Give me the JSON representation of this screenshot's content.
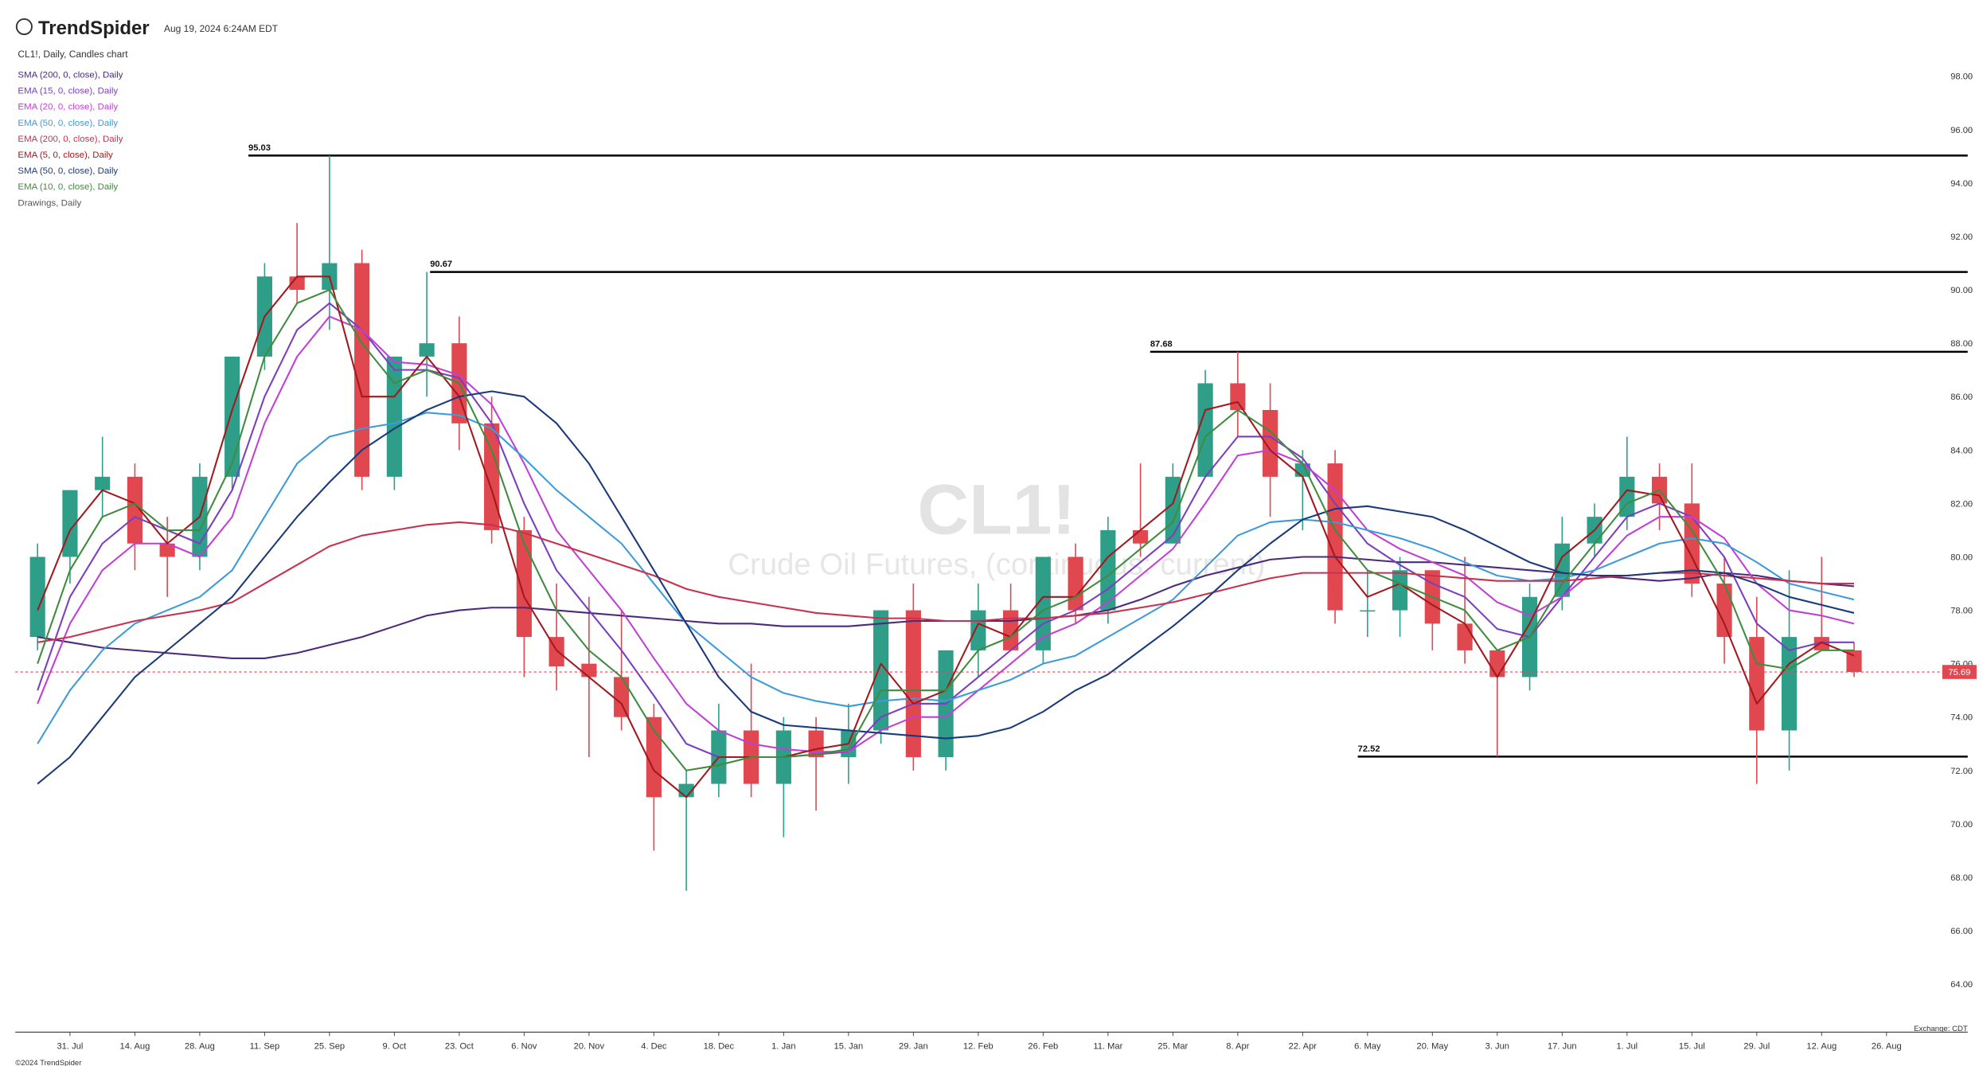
{
  "header": {
    "brand": "TrendSpider",
    "timestamp": "Aug 19, 2024 6:24AM EDT",
    "chart_label": "CL1!, Daily, Candles chart",
    "exchange": "Exchange: CDT",
    "copyright": "©2024 TrendSpider"
  },
  "chart_data": {
    "type": "candlestick",
    "watermark": {
      "symbol": "CL1!",
      "description": "Crude Oil Futures, (continuous: current)"
    },
    "categories": [
      null,
      "31. Jul",
      null,
      "14. Aug",
      null,
      "28. Aug",
      null,
      "11. Sep",
      null,
      "25. Sep",
      null,
      "9. Oct",
      null,
      "23. Oct",
      null,
      "6. Nov",
      null,
      "20. Nov",
      null,
      "4. Dec",
      null,
      "18. Dec",
      null,
      "1. Jan",
      null,
      "15. Jan",
      null,
      "29. Jan",
      null,
      "12. Feb",
      null,
      "26. Feb",
      null,
      "11. Mar",
      null,
      "25. Mar",
      null,
      "8. Apr",
      null,
      "22. Apr",
      null,
      "6. May",
      null,
      "20. May",
      null,
      "3. Jun",
      null,
      "17. Jun",
      null,
      "1. Jul",
      null,
      "15. Jul",
      null,
      "29. Jul",
      null,
      "12. Aug",
      null,
      "26. Aug"
    ],
    "open": [
      77,
      80,
      82.5,
      83,
      80.5,
      80,
      83,
      87.5,
      90.5,
      90,
      91,
      83,
      87.5,
      88,
      85,
      81,
      77,
      76,
      75.5,
      74,
      71,
      71.5,
      73.5,
      71.5,
      73.5,
      72.5,
      73.5,
      78,
      72.5,
      76.5,
      78,
      76.5,
      80,
      78,
      81,
      80.5,
      83,
      86.5,
      85.5,
      83,
      83.5,
      78,
      78,
      79.5,
      77.5,
      76.5,
      75.5,
      78.5,
      80.5,
      81.5,
      83,
      82,
      79,
      77,
      73.5,
      77,
      76.5,
      null
    ],
    "high": [
      80.5,
      82.5,
      84.5,
      83.5,
      81.5,
      83.5,
      87.5,
      91,
      92.5,
      95.03,
      91.5,
      87.5,
      90.67,
      89,
      86,
      81.5,
      79,
      78.5,
      78,
      74.5,
      72,
      74.5,
      76,
      74,
      74,
      74.5,
      78,
      79,
      76.5,
      79,
      79,
      80,
      80.5,
      81.5,
      83.5,
      83.5,
      87,
      87.68,
      86.5,
      84,
      84,
      79.5,
      80,
      79.5,
      80,
      76.5,
      79,
      81.5,
      82,
      84.5,
      83.5,
      83.5,
      80,
      78.5,
      79.5,
      80,
      76.8,
      null
    ],
    "low": [
      76.5,
      79,
      81.5,
      79.5,
      78.5,
      79.5,
      82.5,
      87,
      89.5,
      88.5,
      82.5,
      82.5,
      86,
      84,
      80.5,
      75.5,
      75,
      72.5,
      73.5,
      69,
      67.5,
      71,
      71,
      69.5,
      70.5,
      71.5,
      73,
      72,
      72,
      75.5,
      76.5,
      76,
      77.5,
      77.5,
      80,
      80.5,
      83,
      84.5,
      81.5,
      81,
      77.5,
      77,
      77,
      76.5,
      76,
      72.52,
      75,
      78,
      80,
      81,
      81,
      78.5,
      76,
      71.5,
      72,
      76.5,
      75.5,
      null
    ],
    "close": [
      80,
      82.5,
      83,
      80.5,
      80,
      83,
      87.5,
      90.5,
      90,
      91,
      83,
      87.5,
      88,
      85,
      81,
      77,
      75.9,
      75.5,
      74,
      71,
      71.5,
      73.5,
      71.5,
      73.5,
      72.5,
      73.5,
      78,
      72.5,
      76.5,
      78,
      76.5,
      80,
      78,
      81,
      80.5,
      83,
      86.5,
      85.5,
      83,
      83.5,
      78,
      78,
      79.5,
      77.5,
      76.5,
      75.5,
      78.5,
      80.5,
      81.5,
      83,
      82,
      79,
      77,
      73.5,
      77,
      76.5,
      75.69,
      null
    ],
    "up_color": "#2f9e88",
    "down_color": "#e0474f",
    "series": [
      {
        "name": "SMA (200, 0, close), Daily",
        "color": "#4b2a7b",
        "values": [
          77,
          76.8,
          76.6,
          76.5,
          76.4,
          76.3,
          76.2,
          76.2,
          76.4,
          76.7,
          77,
          77.4,
          77.8,
          78,
          78.1,
          78.1,
          78,
          77.9,
          77.8,
          77.7,
          77.6,
          77.5,
          77.5,
          77.4,
          77.4,
          77.4,
          77.5,
          77.6,
          77.6,
          77.6,
          77.6,
          77.7,
          77.8,
          78,
          78.4,
          78.9,
          79.3,
          79.6,
          79.9,
          80,
          80,
          79.9,
          79.8,
          79.8,
          79.7,
          79.6,
          79.5,
          79.4,
          79.3,
          79.2,
          79.1,
          79.2,
          79.4,
          79.3,
          79.1,
          79,
          78.9,
          null
        ]
      },
      {
        "name": "EMA (15, 0, close), Daily",
        "color": "#7a3fc0",
        "values": [
          75,
          78.5,
          80.5,
          81.5,
          81,
          80.5,
          82.5,
          86,
          88.5,
          89.5,
          88.5,
          87,
          87,
          86.7,
          85,
          82,
          79.5,
          78,
          76.5,
          74.8,
          73,
          72.5,
          72.5,
          72.5,
          72.6,
          72.7,
          74,
          74.5,
          74.5,
          75.5,
          76.5,
          77.5,
          78,
          78.8,
          79.8,
          80.8,
          83,
          84.5,
          84.5,
          83.7,
          82,
          80.5,
          79.7,
          79,
          78.5,
          77.3,
          77,
          78.5,
          80,
          81.5,
          82,
          81.5,
          80,
          77.5,
          76.5,
          76.8,
          76.8,
          null
        ]
      },
      {
        "name": "EMA (20, 0, close), Daily",
        "color": "#c23fd6",
        "values": [
          74.5,
          77.5,
          79.5,
          80.5,
          80.5,
          80,
          81.5,
          85,
          87.5,
          89,
          88.5,
          87.3,
          87.2,
          86.8,
          85.7,
          83.5,
          81,
          79.5,
          78,
          76.2,
          74.5,
          73.5,
          73,
          72.8,
          72.7,
          72.7,
          73.5,
          74,
          74,
          75,
          76,
          77,
          77.5,
          78.3,
          79.3,
          80.3,
          82,
          83.8,
          84,
          83.5,
          82.5,
          81,
          80.3,
          79.8,
          79.3,
          78.3,
          77.8,
          78.5,
          79.5,
          80.8,
          81.5,
          81.5,
          80.7,
          79,
          78,
          77.8,
          77.5,
          null
        ]
      },
      {
        "name": "EMA (50, 0, close), Daily",
        "color": "#3d9bdb",
        "values": [
          73,
          75,
          76.5,
          77.5,
          78,
          78.5,
          79.5,
          81.5,
          83.5,
          84.5,
          84.8,
          85,
          85.4,
          85.3,
          84.8,
          83.7,
          82.5,
          81.5,
          80.5,
          79,
          77.5,
          76.5,
          75.5,
          74.9,
          74.6,
          74.4,
          74.6,
          74.7,
          74.6,
          75,
          75.4,
          76,
          76.3,
          77,
          77.7,
          78.4,
          79.6,
          80.8,
          81.3,
          81.4,
          81.3,
          81,
          80.7,
          80.3,
          79.8,
          79.3,
          79.1,
          79.2,
          79.5,
          80,
          80.5,
          80.7,
          80.5,
          79.8,
          79,
          78.7,
          78.4,
          null
        ]
      },
      {
        "name": "EMA (200, 0, close), Daily",
        "color": "#c8324f",
        "values": [
          76.8,
          77,
          77.3,
          77.6,
          77.8,
          78,
          78.3,
          79,
          79.7,
          80.4,
          80.8,
          81,
          81.2,
          81.3,
          81.2,
          80.9,
          80.5,
          80.1,
          79.7,
          79.3,
          78.8,
          78.5,
          78.3,
          78.1,
          77.9,
          77.8,
          77.7,
          77.7,
          77.6,
          77.6,
          77.7,
          77.7,
          77.8,
          77.9,
          78.1,
          78.3,
          78.6,
          78.9,
          79.2,
          79.4,
          79.4,
          79.4,
          79.4,
          79.3,
          79.2,
          79.1,
          79.1,
          79.1,
          79.2,
          79.3,
          79.4,
          79.4,
          79.3,
          79.2,
          79.1,
          79,
          79,
          null
        ]
      },
      {
        "name": "EMA (5, 0, close), Daily",
        "color": "#a3191d",
        "values": [
          78,
          81,
          82.5,
          82,
          80.5,
          81.5,
          85.5,
          89,
          90.5,
          90.5,
          86,
          86,
          87.5,
          86,
          82.5,
          78.5,
          76.5,
          75.5,
          74.5,
          72,
          71,
          72.5,
          72.5,
          72.5,
          72.8,
          73,
          76,
          74.5,
          75,
          77.5,
          77,
          78.5,
          78.5,
          80,
          81,
          82,
          85.5,
          85.8,
          84,
          83,
          80,
          78.5,
          79,
          78.2,
          77.5,
          75.5,
          77.5,
          80,
          81,
          82.5,
          82.3,
          80,
          77.5,
          74.5,
          76,
          76.8,
          76.3,
          null
        ]
      },
      {
        "name": "SMA (50, 0, close), Daily",
        "color": "#1b3a7c",
        "values": [
          71.5,
          72.5,
          74,
          75.5,
          76.5,
          77.5,
          78.5,
          80,
          81.5,
          82.8,
          84,
          84.8,
          85.5,
          86,
          86.2,
          86,
          85,
          83.5,
          81.5,
          79.5,
          77.5,
          75.5,
          74.2,
          73.7,
          73.6,
          73.5,
          73.4,
          73.3,
          73.2,
          73.3,
          73.6,
          74.2,
          75,
          75.6,
          76.5,
          77.4,
          78.4,
          79.5,
          80.5,
          81.4,
          81.8,
          81.9,
          81.7,
          81.5,
          81,
          80.4,
          79.8,
          79.4,
          79.3,
          79.3,
          79.4,
          79.5,
          79.4,
          79,
          78.5,
          78.2,
          77.9,
          null
        ]
      },
      {
        "name": "EMA (10, 0, close), Daily",
        "color": "#3f8c3f",
        "values": [
          76,
          79.5,
          81.5,
          82,
          81,
          81,
          83.5,
          87.5,
          89.5,
          90,
          88,
          86.5,
          87,
          86.5,
          84,
          80.5,
          78,
          76.5,
          75.5,
          73.5,
          72,
          72.2,
          72.5,
          72.5,
          72.6,
          72.8,
          75,
          75,
          75,
          76.5,
          77,
          78,
          78.5,
          79.3,
          80.3,
          81.3,
          84.5,
          85.5,
          84.7,
          83.5,
          81,
          79.5,
          79,
          78.5,
          78,
          76.5,
          77,
          79,
          80.5,
          82,
          82.5,
          81,
          79,
          76,
          75.8,
          76.5,
          76.5,
          null
        ]
      }
    ],
    "drawings": {
      "name": "Drawings, Daily",
      "color": "#555555",
      "levels": [
        95.03,
        90.67,
        87.68,
        72.52
      ]
    },
    "ylim": [
      62.2,
      98.95
    ],
    "yticks": [
      {
        "value": 64,
        "label": "64.00"
      },
      {
        "value": 66,
        "label": "66.00"
      },
      {
        "value": 68,
        "label": "68.00"
      },
      {
        "value": 70,
        "label": "70.00"
      },
      {
        "value": 72,
        "label": "72.00"
      },
      {
        "value": 74,
        "label": "74.00"
      },
      {
        "value": 76,
        "label": "76.00"
      },
      {
        "value": 78,
        "label": "78.00"
      },
      {
        "value": 80,
        "label": "80.00"
      },
      {
        "value": 82,
        "label": "82.00"
      },
      {
        "value": 84,
        "label": "84.00"
      },
      {
        "value": 86,
        "label": "86.00"
      },
      {
        "value": 88,
        "label": "88.00"
      },
      {
        "value": 90,
        "label": "90.00"
      },
      {
        "value": 92,
        "label": "92.00"
      },
      {
        "value": 94,
        "label": "94.00"
      },
      {
        "value": 96,
        "label": "96.00"
      },
      {
        "value": 98,
        "label": "98.00"
      }
    ],
    "grid": false
  }
}
